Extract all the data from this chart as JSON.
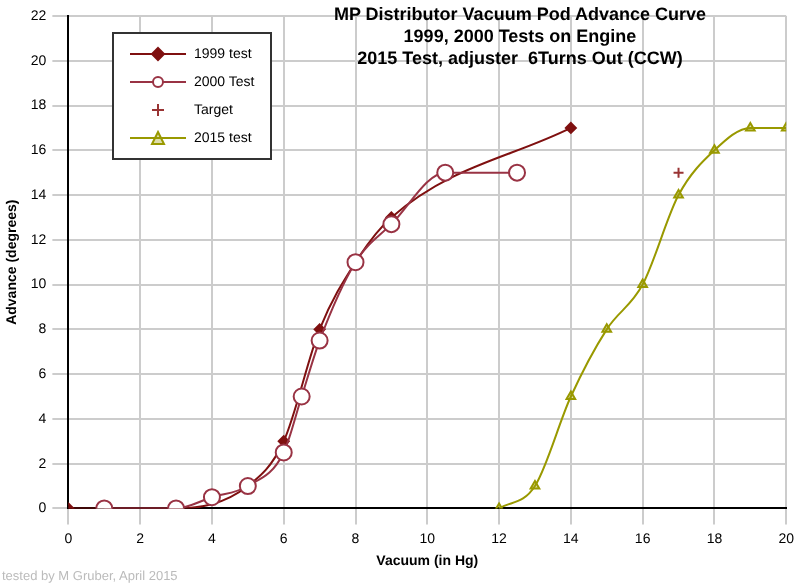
{
  "chart_data": {
    "type": "line",
    "title": "MP Distributor Vacuum Pod Advance Curve\n1999, 2000 Tests on Engine\n2015 Test, adjuster  6Turns Out (CCW)",
    "xlabel": "Vacuum (in Hg)",
    "ylabel": "Advance (degrees)",
    "annotations": [
      "tested by M Gruber, April 2015"
    ],
    "xlim": [
      0,
      20
    ],
    "xticks": [
      0,
      2,
      4,
      6,
      8,
      10,
      12,
      14,
      16,
      18,
      20
    ],
    "ylim": [
      0,
      22
    ],
    "yticks": [
      0,
      2,
      4,
      6,
      8,
      10,
      12,
      14,
      16,
      18,
      20,
      22
    ],
    "grid": true,
    "legend": "top left",
    "series": [
      {
        "name": "1999 test",
        "color": "#7f1010",
        "marker": "diamond",
        "x": [
          0,
          3,
          5,
          6,
          7,
          8,
          9,
          14
        ],
        "values": [
          0,
          0,
          1,
          3,
          8,
          11,
          13,
          17
        ]
      },
      {
        "name": "2000 Test",
        "color": "#993344",
        "marker": "circle",
        "x": [
          1,
          3,
          4,
          5,
          6,
          6.5,
          7,
          8,
          9,
          10.5,
          12.5
        ],
        "values": [
          0,
          0,
          0.5,
          1,
          2.5,
          5,
          7.5,
          11,
          12.7,
          15,
          15
        ]
      },
      {
        "name": "Target",
        "color": "#993333",
        "marker": "cross",
        "type": "scatter",
        "x": [
          17
        ],
        "values": [
          15
        ]
      },
      {
        "name": "2015 test",
        "color": "#999900",
        "marker": "triangle",
        "x": [
          12,
          13,
          14,
          15,
          16,
          17,
          18,
          19,
          20
        ],
        "values": [
          0,
          1,
          5,
          8,
          10,
          14,
          16,
          17,
          17
        ]
      }
    ]
  }
}
